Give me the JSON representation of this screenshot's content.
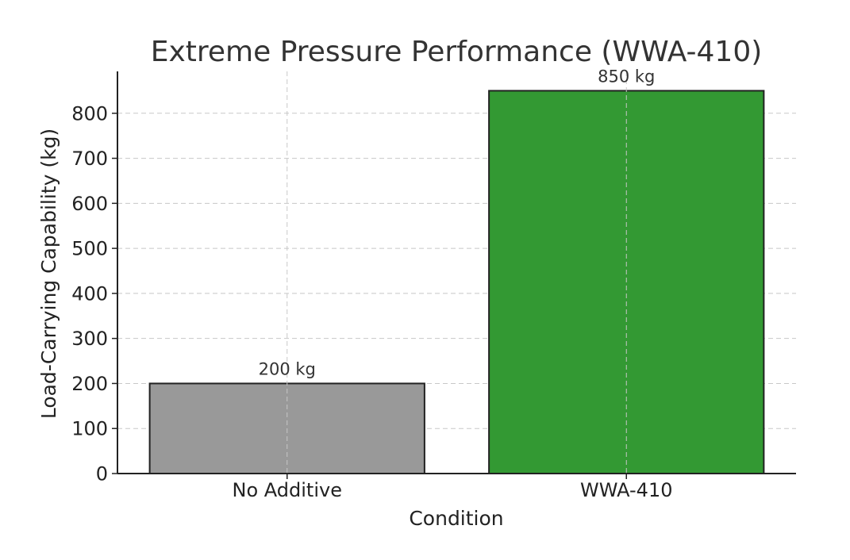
{
  "chart_data": {
    "type": "bar",
    "title": "Extreme Pressure Performance (WWA-410)",
    "xlabel": "Condition",
    "ylabel": "Load-Carrying Capability (kg)",
    "categories": [
      "No Additive",
      "WWA-410"
    ],
    "values": [
      200,
      850
    ],
    "data_labels": [
      "200 kg",
      "850 kg"
    ],
    "colors": [
      "#999999",
      "#339933"
    ],
    "ylim": [
      0,
      893
    ],
    "yticks": [
      0,
      100,
      200,
      300,
      400,
      500,
      600,
      700,
      800
    ],
    "grid": true
  }
}
